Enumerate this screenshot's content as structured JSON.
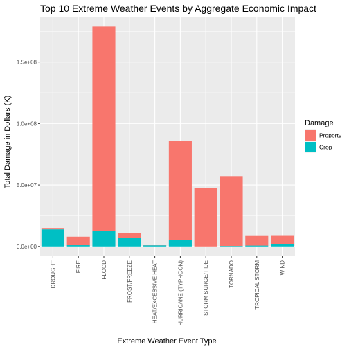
{
  "chart_data": {
    "type": "bar",
    "stacked": true,
    "title": "Top 10 Extreme Weather Events by Aggregate Economic Impact",
    "xlabel": "Extreme Weather Event Type",
    "ylabel": "Total Damage in Dollars (K)",
    "categories": [
      "DROUGHT",
      "FIRE",
      "FLOOD",
      "FROST/FREEZE",
      "HEAT/EXCESSIVE HEAT",
      "HURRICANE (TYPHOON)",
      "STORM SURGE/TIDE",
      "TORNADO",
      "TROPICAL STORM",
      "WIND"
    ],
    "series": [
      {
        "name": "Crop",
        "color": "#00BFC4",
        "values": [
          13900000,
          1000000,
          12300000,
          6700000,
          900000,
          5500000,
          0,
          400000,
          700000,
          2000000
        ]
      },
      {
        "name": "Property",
        "color": "#F8766D",
        "values": [
          1100000,
          6900000,
          166600000,
          3900000,
          100000,
          80500000,
          47800000,
          56800000,
          7800000,
          6600000
        ]
      }
    ],
    "ylim": [
      -8000000,
      187000000
    ],
    "yticks": [
      0,
      50000000,
      100000000,
      150000000
    ],
    "ytick_labels": [
      "0.0e+00",
      "5.0e+07",
      "1.0e+08",
      "1.5e+08"
    ],
    "legend": {
      "title": "Damage",
      "position": "right",
      "entries": [
        {
          "label": "Property",
          "color": "#F8766D"
        },
        {
          "label": "Crop",
          "color": "#00BFC4"
        }
      ]
    },
    "panel_background": "#EBEBEB",
    "grid_color": "#FFFFFF",
    "grid": true
  }
}
